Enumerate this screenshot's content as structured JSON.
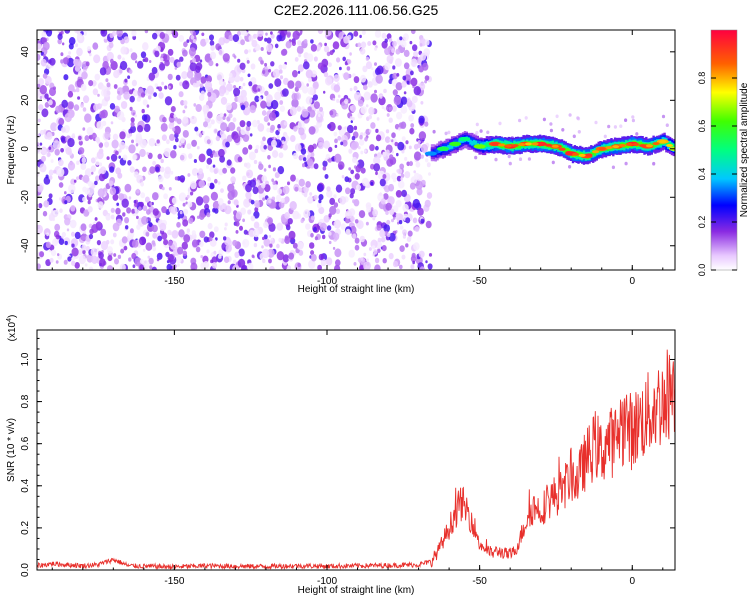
{
  "chart_data": [
    {
      "type": "heatmap",
      "title": "C2E2.2026.111.06.56.G25",
      "xlabel": "Height of straight line (km)",
      "ylabel": "Frequency (Hz)",
      "xlim": [
        -195,
        14
      ],
      "ylim": [
        -50,
        49
      ],
      "x_ticks": [
        -150,
        -100,
        -50,
        0
      ],
      "x_tick_labels": [
        "-150",
        "-100",
        "-50",
        "0"
      ],
      "y_ticks": [
        -40,
        -20,
        0,
        20,
        40
      ],
      "y_tick_labels": [
        "-40",
        "-20",
        "0",
        "20",
        "40"
      ],
      "colorbar": {
        "label": "Normalized spectral amplitude",
        "range": [
          0,
          1
        ],
        "ticks": [
          0.0,
          0.2,
          0.4,
          0.6,
          0.8
        ],
        "tick_labels": [
          "0.0",
          "0.2",
          "0.4",
          "0.6",
          "0.8"
        ]
      },
      "noise_region_x": [
        -195,
        -66
      ],
      "signal_band": {
        "x": [
          -66,
          -62,
          -58,
          -55,
          -50,
          -45,
          -40,
          -35,
          -30,
          -25,
          -20,
          -15,
          -10,
          -5,
          0,
          5,
          10,
          14
        ],
        "frequency_hz": [
          -2,
          0,
          2,
          4,
          1,
          2,
          1,
          2,
          2,
          1,
          -2,
          -3,
          0,
          1,
          2,
          1,
          3,
          0
        ],
        "amplitude": [
          0.35,
          0.55,
          0.6,
          0.5,
          0.65,
          0.9,
          0.95,
          0.9,
          0.95,
          0.9,
          0.95,
          0.9,
          0.85,
          0.9,
          0.95,
          0.9,
          0.8,
          0.7
        ]
      }
    },
    {
      "type": "line",
      "xlabel": "Height of straight line (km)",
      "ylabel": "SNR (10 * v/v)",
      "y_multiplier": "(x10",
      "y_exponent": "4",
      "xlim": [
        -195,
        14
      ],
      "ylim": [
        0,
        1.14
      ],
      "x_ticks": [
        -150,
        -100,
        -50,
        0
      ],
      "x_tick_labels": [
        "-150",
        "-100",
        "-50",
        "0"
      ],
      "y_ticks": [
        0.0,
        0.2,
        0.4,
        0.6,
        0.8,
        1.0
      ],
      "y_tick_labels": [
        "0.0",
        "0.2",
        "0.4",
        "0.6",
        "0.8",
        "1.0"
      ],
      "color": "#e8302c",
      "series": [
        {
          "name": "SNR",
          "x": [
            -195,
            -190,
            -185,
            -180,
            -175,
            -170,
            -165,
            -160,
            -150,
            -140,
            -130,
            -120,
            -110,
            -100,
            -90,
            -80,
            -70,
            -66,
            -64,
            -62,
            -60,
            -58,
            -56,
            -54,
            -52,
            -50,
            -48,
            -46,
            -44,
            -42,
            -40,
            -38,
            -36,
            -34,
            -32,
            -30,
            -28,
            -26,
            -24,
            -22,
            -20,
            -18,
            -16,
            -14,
            -12,
            -10,
            -8,
            -6,
            -4,
            -2,
            0,
            2,
            4,
            6,
            8,
            10,
            12,
            14
          ],
          "y": [
            0.02,
            0.03,
            0.025,
            0.02,
            0.025,
            0.05,
            0.02,
            0.018,
            0.015,
            0.02,
            0.018,
            0.017,
            0.02,
            0.018,
            0.02,
            0.022,
            0.025,
            0.04,
            0.08,
            0.14,
            0.2,
            0.27,
            0.32,
            0.28,
            0.22,
            0.12,
            0.1,
            0.08,
            0.09,
            0.08,
            0.07,
            0.1,
            0.18,
            0.27,
            0.3,
            0.28,
            0.32,
            0.35,
            0.36,
            0.4,
            0.45,
            0.42,
            0.5,
            0.55,
            0.6,
            0.55,
            0.62,
            0.6,
            0.68,
            0.7,
            0.65,
            0.7,
            0.72,
            0.75,
            0.78,
            0.8,
            0.85,
            0.9
          ]
        }
      ]
    }
  ]
}
